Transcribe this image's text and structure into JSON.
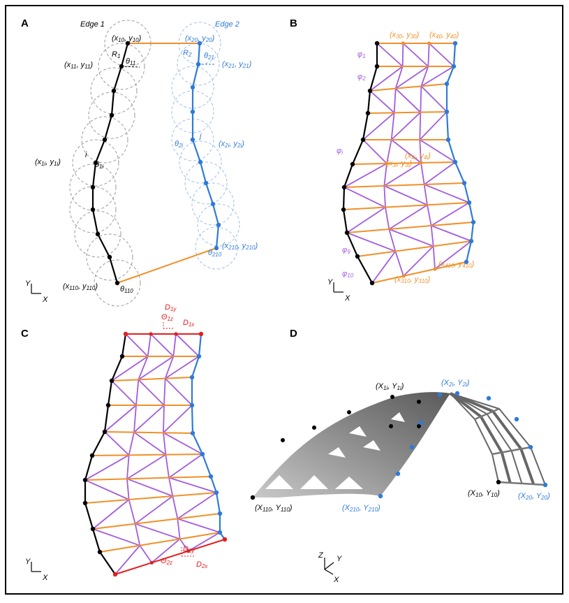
{
  "panels": {
    "A": {
      "letter": "A",
      "edge1": "Edge 1",
      "edge2": "Edge 2",
      "labels": [
        "(x10, y10)",
        "(x20, y20)",
        "R1",
        "R2",
        "θ11",
        "θ21",
        "(x11, y11)",
        "(x21, y21)",
        "i",
        "θ1i",
        "(x1i, y1i)",
        "θ2i",
        "j",
        "(x2i, y2i)",
        "θ210",
        "(x210, y210)",
        "(x110, y110)",
        "θ110"
      ],
      "axis_y": "Y",
      "axis_x": "X"
    },
    "B": {
      "letter": "B",
      "labels": [
        "(x30, y30)",
        "(x40, y40)",
        "φ1",
        "φ2",
        "φi",
        "(x3i, y3i)",
        "(x4i, y4i)",
        "φ9",
        "φ10",
        "(x310, y310)",
        "(x410, y410)"
      ],
      "axis_y": "Y",
      "axis_x": "X"
    },
    "C": {
      "letter": "C",
      "labels": [
        "D1y",
        "Θ1z",
        "D1x",
        "D2y",
        "Θ2z",
        "D2x"
      ],
      "axis_y": "Y",
      "axis_x": "X"
    },
    "D": {
      "letter": "D",
      "labels": [
        "(X1i, Y1i)",
        "(X2i, Y2i)",
        "(X110, Y110)",
        "(X210, Y210)",
        "(X10, Y10)",
        "(X20, Y20)"
      ],
      "axis_z": "Z",
      "axis_y": "Y",
      "axis_x": "X"
    }
  }
}
